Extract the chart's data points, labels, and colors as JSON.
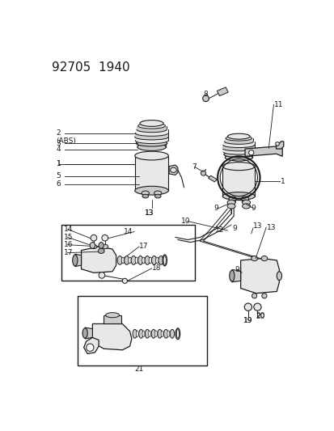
{
  "title": "92705  1940",
  "bg_color": "#ffffff",
  "lc": "#1a1a1a",
  "fc_light": "#e8e8e8",
  "fc_mid": "#cccccc",
  "fc_dark": "#aaaaaa",
  "title_fontsize": 11,
  "label_fontsize": 6.5,
  "figsize": [
    4.14,
    5.33
  ],
  "dpi": 100
}
